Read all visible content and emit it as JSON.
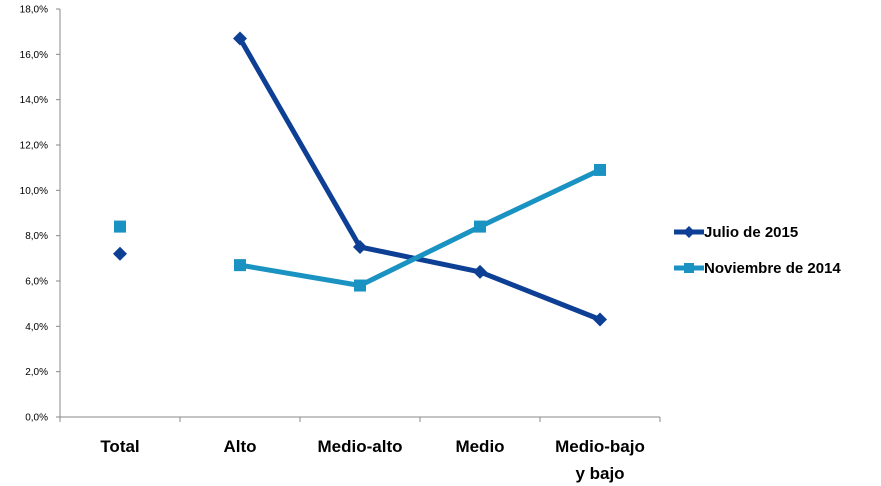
{
  "chart_data": {
    "type": "line",
    "categories": [
      [
        "Total"
      ],
      [
        "Alto"
      ],
      [
        "Medio-alto"
      ],
      [
        "Medio"
      ],
      [
        "Medio-bajo",
        "y bajo"
      ]
    ],
    "series": [
      {
        "name": "Julio de 2015",
        "values": [
          7.2,
          16.7,
          7.5,
          6.4,
          4.3
        ],
        "color": "#0d3f95",
        "marker": "diamond",
        "connect_from_index": 1
      },
      {
        "name": "Noviembre de 2014",
        "values": [
          8.4,
          6.7,
          5.8,
          8.4,
          10.9
        ],
        "color": "#1a93c2",
        "marker": "square",
        "connect_from_index": 1
      }
    ],
    "ylim": [
      0,
      18
    ],
    "yticks": [
      "0,0%",
      "2,0%",
      "4,0%",
      "6,0%",
      "8,0%",
      "10,0%",
      "12,0%",
      "14,0%",
      "16,0%",
      "18,0%"
    ],
    "legend_position": "right",
    "grid": false
  }
}
